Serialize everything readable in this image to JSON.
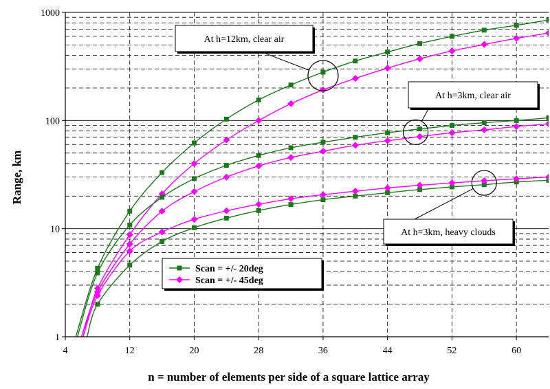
{
  "chart_data": {
    "type": "line",
    "xlabel": "n = number of elements per side of a square lattice array",
    "ylabel": "Range, km",
    "xlim": [
      4,
      64
    ],
    "ylim": [
      1,
      1000
    ],
    "yscale": "log",
    "grid": true,
    "x_ticks": [
      4,
      12,
      20,
      28,
      36,
      44,
      52,
      60
    ],
    "y_ticks": [
      1,
      10,
      100,
      1000
    ],
    "legend": {
      "placement": "center-left",
      "entries": [
        "Scan = +/- 20deg",
        "Scan = +/- 45deg"
      ]
    },
    "series": [
      {
        "name": "Scan = +/- 20deg",
        "group": "At h=12km, clear air",
        "color": "#1a7a1a",
        "marker": "square",
        "points": [
          [
            5.3,
            1
          ],
          [
            8,
            4.3
          ],
          [
            12,
            14.5
          ],
          [
            16,
            33
          ],
          [
            20,
            62
          ],
          [
            24,
            103
          ],
          [
            28,
            155
          ],
          [
            32,
            213
          ],
          [
            36,
            280
          ],
          [
            40,
            355
          ],
          [
            44,
            430
          ],
          [
            48,
            515
          ],
          [
            52,
            600
          ],
          [
            56,
            685
          ],
          [
            60,
            760
          ],
          [
            64,
            850
          ]
        ]
      },
      {
        "name": "Scan = +/- 45deg",
        "group": "At h=12km, clear air",
        "color": "#ff00ff",
        "marker": "diamond",
        "points": [
          [
            6.2,
            1
          ],
          [
            8,
            2.8
          ],
          [
            12,
            8.8
          ],
          [
            16,
            21
          ],
          [
            20,
            40
          ],
          [
            24,
            66
          ],
          [
            28,
            100
          ],
          [
            32,
            143
          ],
          [
            36,
            192
          ],
          [
            40,
            245
          ],
          [
            44,
            305
          ],
          [
            48,
            372
          ],
          [
            52,
            440
          ],
          [
            56,
            505
          ],
          [
            60,
            575
          ],
          [
            64,
            645
          ]
        ]
      },
      {
        "name": "Scan = +/- 20deg",
        "group": "At h=3km, clear air",
        "color": "#1a7a1a",
        "marker": "square",
        "points": [
          [
            5.5,
            1
          ],
          [
            8,
            3.9
          ],
          [
            12,
            10.8
          ],
          [
            16,
            19.5
          ],
          [
            20,
            29
          ],
          [
            24,
            38.5
          ],
          [
            28,
            47.5
          ],
          [
            32,
            56
          ],
          [
            36,
            63
          ],
          [
            40,
            70
          ],
          [
            44,
            77
          ],
          [
            48,
            83.5
          ],
          [
            52,
            90
          ],
          [
            56,
            95.5
          ],
          [
            60,
            100
          ],
          [
            64,
            106
          ]
        ]
      },
      {
        "name": "Scan = +/- 45deg",
        "group": "At h=3km, clear air",
        "color": "#ff00ff",
        "marker": "diamond",
        "points": [
          [
            6,
            1
          ],
          [
            8,
            2.6
          ],
          [
            12,
            7.2
          ],
          [
            16,
            14.5
          ],
          [
            20,
            22
          ],
          [
            24,
            30
          ],
          [
            28,
            38
          ],
          [
            32,
            45.5
          ],
          [
            36,
            52
          ],
          [
            40,
            59
          ],
          [
            44,
            65
          ],
          [
            48,
            71
          ],
          [
            52,
            77
          ],
          [
            56,
            82
          ],
          [
            60,
            88
          ],
          [
            64,
            93
          ]
        ]
      },
      {
        "name": "Scan = +/- 20deg",
        "group": "At h=3km, heavy clouds",
        "color": "#1a7a1a",
        "marker": "square",
        "points": [
          [
            6.7,
            1
          ],
          [
            8,
            2
          ],
          [
            12,
            4.6
          ],
          [
            16,
            7.6
          ],
          [
            20,
            10.2
          ],
          [
            24,
            12.5
          ],
          [
            28,
            14.7
          ],
          [
            32,
            16.7
          ],
          [
            36,
            18.5
          ],
          [
            40,
            20
          ],
          [
            44,
            21.5
          ],
          [
            48,
            23
          ],
          [
            52,
            24.3
          ],
          [
            56,
            25.5
          ],
          [
            60,
            27
          ],
          [
            64,
            28
          ]
        ]
      },
      {
        "name": "Scan = +/- 45deg",
        "group": "At h=3km, heavy clouds",
        "color": "#ff00ff",
        "marker": "diamond",
        "points": [
          [
            6.2,
            1
          ],
          [
            8,
            2.4
          ],
          [
            12,
            6.2
          ],
          [
            16,
            9.3
          ],
          [
            20,
            12.2
          ],
          [
            24,
            14.6
          ],
          [
            28,
            16.8
          ],
          [
            32,
            18.9
          ],
          [
            36,
            20.6
          ],
          [
            40,
            22.2
          ],
          [
            44,
            23.8
          ],
          [
            48,
            25.2
          ],
          [
            52,
            26.5
          ],
          [
            56,
            27.7
          ],
          [
            60,
            28.9
          ],
          [
            64,
            30
          ]
        ]
      }
    ],
    "annotations": [
      {
        "text": "At h=12km, clear air",
        "at": [
          36,
          260
        ]
      },
      {
        "text": "At h=3km, clear air",
        "at": [
          47.5,
          78
        ]
      },
      {
        "text": "At h=3km, heavy clouds",
        "at": [
          56,
          26.5
        ]
      }
    ]
  }
}
